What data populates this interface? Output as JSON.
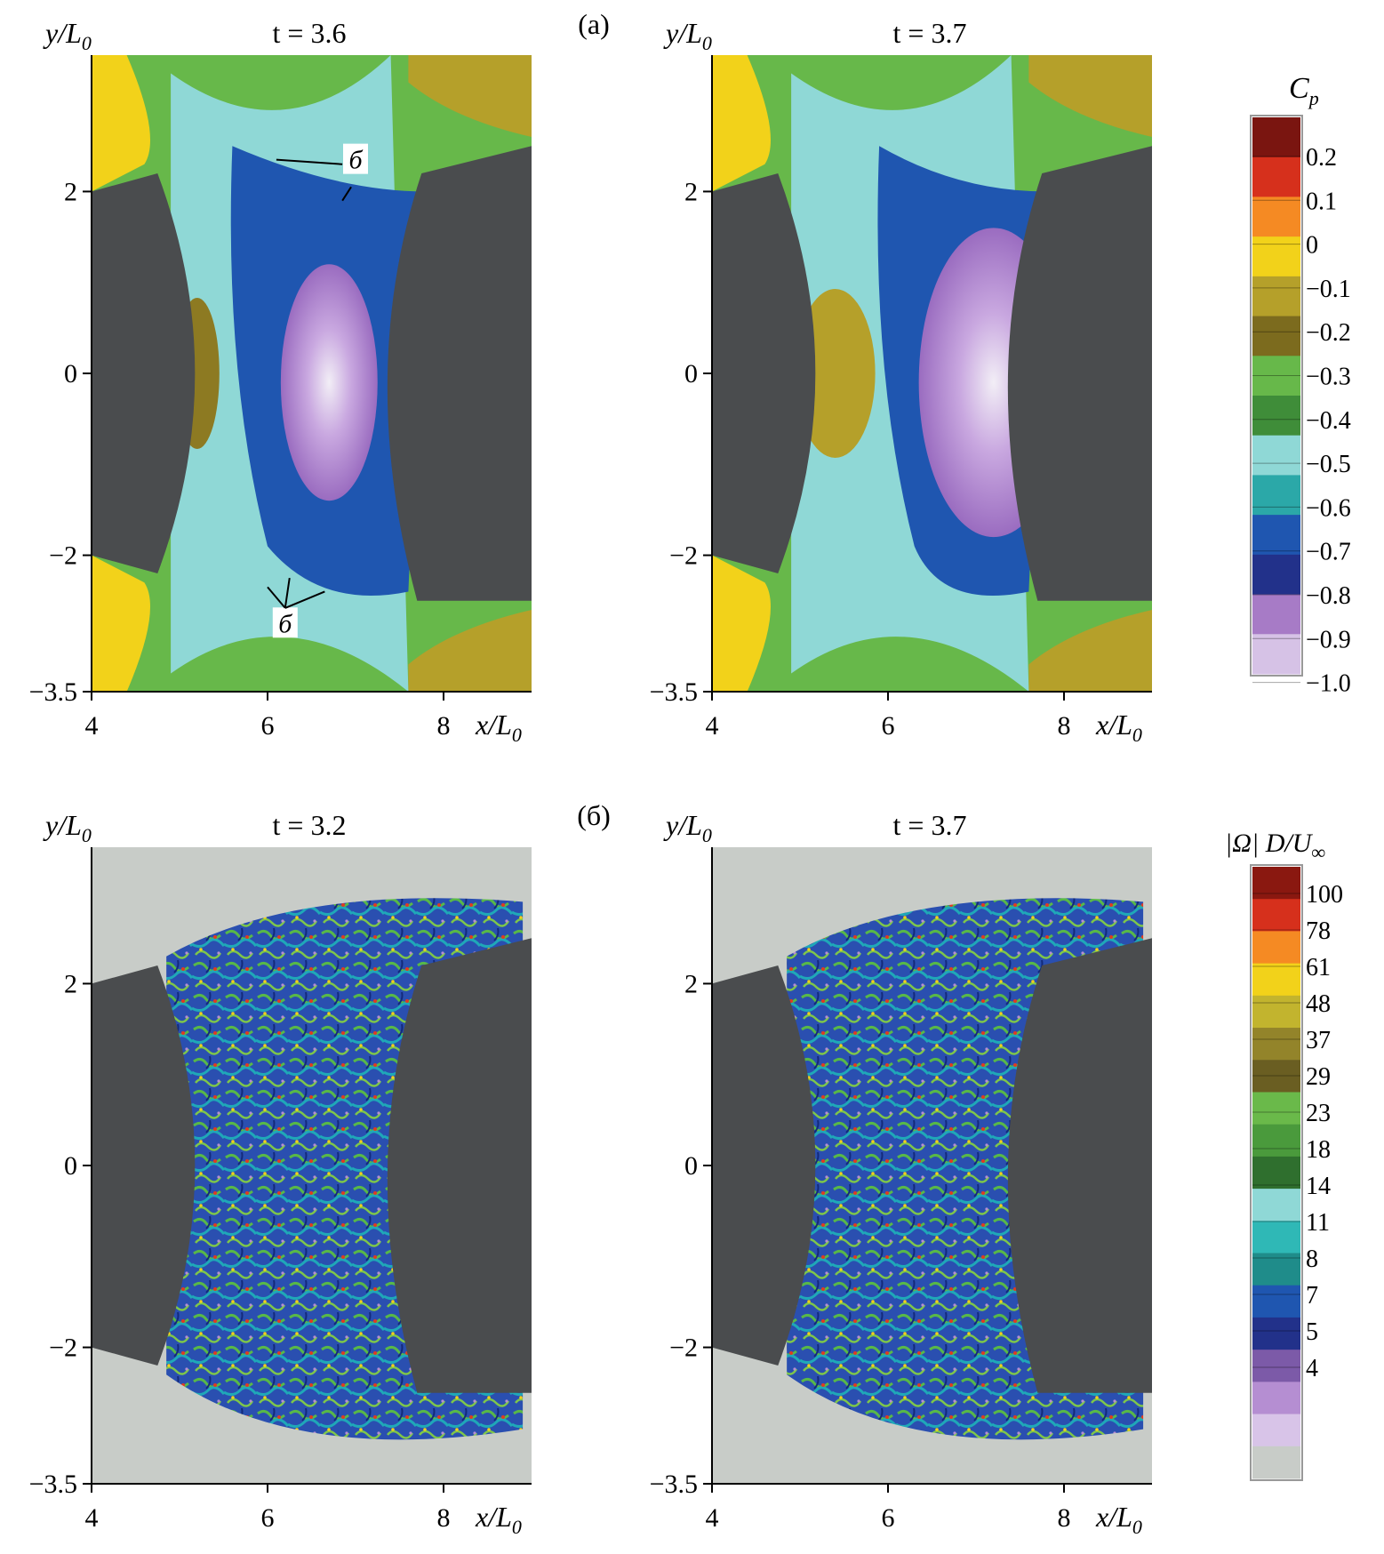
{
  "panels": [
    {
      "id": "a-left",
      "time_label": "t = 3.6",
      "field": "Cp"
    },
    {
      "id": "a-right",
      "time_label": "t = 3.7",
      "field": "Cp"
    },
    {
      "id": "b-left",
      "time_label": "t = 3.2",
      "field": "vorticity"
    },
    {
      "id": "b-right",
      "time_label": "t = 3.7",
      "field": "vorticity"
    }
  ],
  "row_labels": {
    "top": "(a)",
    "bottom": "(б)"
  },
  "axes": {
    "ylabel": "y/L",
    "ylabel_sub": "0",
    "xlabel": "x/L",
    "xlabel_sub": "0",
    "x_ticks": [
      "4",
      "6",
      "8"
    ],
    "y_ticks": [
      "2",
      "0",
      "−2",
      "−3.5"
    ],
    "x_range": [
      4,
      9
    ],
    "y_range": [
      -3.5,
      3.5
    ]
  },
  "annotations": {
    "vortex_label": "б"
  },
  "colorbar_cp": {
    "title": "C",
    "title_sub": "p",
    "labels": [
      "0.2",
      "0.1",
      "0",
      "−0.1",
      "−0.2",
      "−0.3",
      "−0.4",
      "−0.5",
      "−0.6",
      "−0.7",
      "−0.8",
      "−0.9",
      "−1.0"
    ],
    "colors": [
      "#7a1510",
      "#d6301c",
      "#f58a23",
      "#f2d21a",
      "#b5a02a",
      "#7c6b1e",
      "#67b84a",
      "#3f8d39",
      "#8fd8d6",
      "#2ba8a8",
      "#1f56b0",
      "#22318a",
      "#a77bc6",
      "#d6c2e6"
    ]
  },
  "colorbar_vort": {
    "title": "|Ω| D/U",
    "title_sub": "∞",
    "labels": [
      "100",
      "78",
      "61",
      "48",
      "37",
      "29",
      "23",
      "18",
      "14",
      "11",
      "8",
      "7",
      "5",
      "4"
    ],
    "colors": [
      "#8a1810",
      "#d6301c",
      "#f58a23",
      "#f2d21a",
      "#c2b42e",
      "#93842a",
      "#6a5e22",
      "#6ab94a",
      "#4a9a3c",
      "#2f6f2e",
      "#8fd8d6",
      "#2fb8b6",
      "#1f8c8a",
      "#1f56b0",
      "#22318a",
      "#7c5aa8",
      "#b58ed2",
      "#d8c4e8",
      "#c8ccc8"
    ]
  }
}
